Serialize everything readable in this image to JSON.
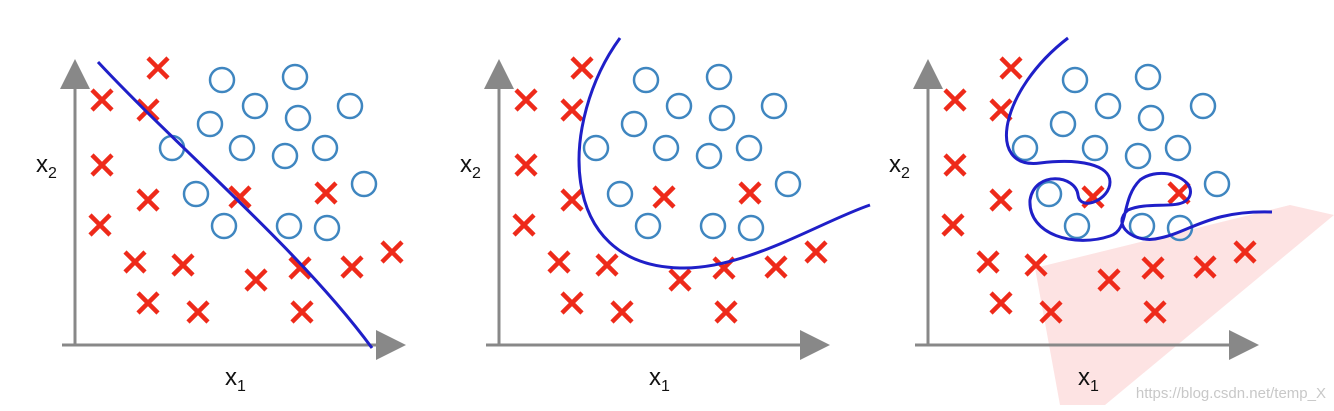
{
  "panels": [
    {
      "x_label": "x",
      "x_sub": "1",
      "y_label": "x",
      "y_sub": "2"
    },
    {
      "x_label": "x",
      "x_sub": "1",
      "y_label": "x",
      "y_sub": "2"
    },
    {
      "x_label": "x",
      "x_sub": "1",
      "y_label": "x",
      "y_sub": "2"
    }
  ],
  "watermark": "https://blog.csdn.net/temp_X"
}
